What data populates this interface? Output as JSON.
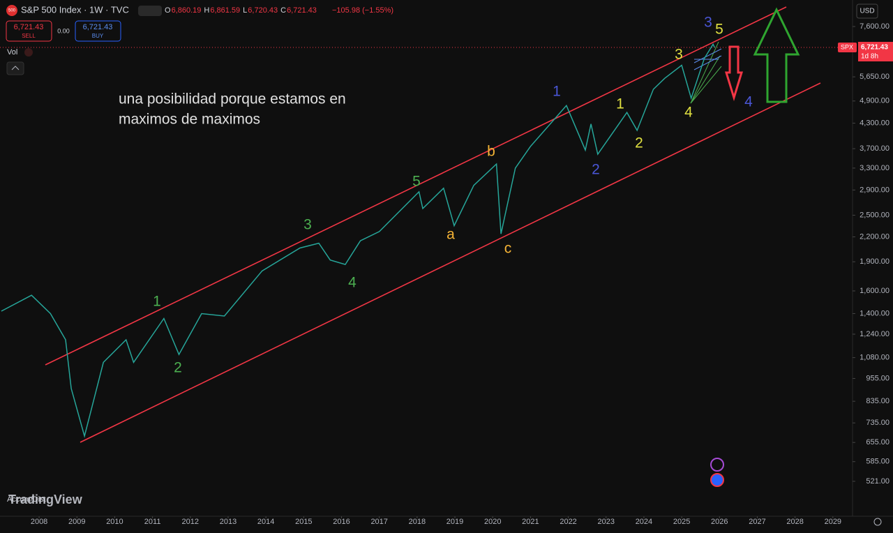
{
  "header": {
    "logo": "500",
    "symbol": "S&P 500 Index · 1W · TVC",
    "ohlc": [
      {
        "key": "O",
        "value": "6,860.19"
      },
      {
        "key": "H",
        "value": "6,861.59"
      },
      {
        "key": "L",
        "value": "6,720.43"
      },
      {
        "key": "C",
        "value": "6,721.43"
      }
    ],
    "change": "−105.98 (−1.55%)"
  },
  "trade": {
    "sell_price": "6,721.43",
    "sell": "SELL",
    "spread": "0.00",
    "buy_price": "6,721.43",
    "buy": "BUY"
  },
  "indicators": [
    "Vol",
    "Accum/Dist"
  ],
  "watermark": "TradingView",
  "currency": "USD",
  "price_tag": {
    "symbol": "SPX",
    "price": "6,721.43",
    "countdown": "1d 8h"
  },
  "annotation": [
    "una posibilidad porque estamos en",
    "maximos de maximos"
  ],
  "wave_labels": [
    {
      "text": "1",
      "color": "#4caf50"
    },
    {
      "text": "2",
      "color": "#4caf50"
    },
    {
      "text": "3",
      "color": "#4caf50"
    },
    {
      "text": "4",
      "color": "#4caf50"
    },
    {
      "text": "5",
      "color": "#4caf50"
    },
    {
      "text": "a",
      "color": "#f5b335"
    },
    {
      "text": "b",
      "color": "#f5b335"
    },
    {
      "text": "c",
      "color": "#f5b335"
    },
    {
      "text": "1",
      "color": "#4a56d6"
    },
    {
      "text": "2",
      "color": "#4a56d6"
    },
    {
      "text": "3",
      "color": "#4a56d6"
    },
    {
      "text": "4",
      "color": "#4a56d6"
    },
    {
      "text": "1",
      "color": "#e0e040"
    },
    {
      "text": "2",
      "color": "#e0e040"
    },
    {
      "text": "3",
      "color": "#e0e040"
    },
    {
      "text": "4",
      "color": "#e0e040"
    },
    {
      "text": "5",
      "color": "#e0e040"
    }
  ],
  "chart_data": {
    "type": "line",
    "log_scale": true,
    "color": "#26a69a",
    "x": [
      2007.0,
      2007.8,
      2008.3,
      2008.7,
      2008.85,
      2009.2,
      2009.7,
      2010.3,
      2010.5,
      2011.3,
      2011.7,
      2012.3,
      2012.9,
      2013.9,
      2014.9,
      2015.4,
      2015.7,
      2016.1,
      2016.5,
      2017.0,
      2018.05,
      2018.15,
      2018.7,
      2018.98,
      2019.5,
      2020.1,
      2020.22,
      2020.6,
      2021.0,
      2021.95,
      2022.45,
      2022.6,
      2022.78,
      2023.55,
      2023.82,
      2024.25,
      2024.55,
      2025.0,
      2025.25,
      2025.6,
      2025.83,
      2025.87
    ],
    "values": [
      1420,
      1560,
      1400,
      1200,
      900,
      680,
      1050,
      1200,
      1050,
      1360,
      1100,
      1400,
      1380,
      1800,
      2060,
      2120,
      1920,
      1870,
      2150,
      2270,
      2870,
      2600,
      2930,
      2350,
      2980,
      3380,
      2240,
      3300,
      3750,
      4770,
      3670,
      4280,
      3580,
      4580,
      4120,
      5250,
      5600,
      6050,
      4980,
      6300,
      6850,
      6721.43
    ],
    "xlim": [
      2006.965,
      2029.52
    ],
    "ylim": [
      424,
      8886
    ],
    "xticks": [
      2008,
      2009,
      2010,
      2011,
      2012,
      2013,
      2014,
      2015,
      2016,
      2017,
      2018,
      2019,
      2020,
      2021,
      2022,
      2023,
      2024,
      2025,
      2026,
      2027,
      2028,
      2029
    ],
    "yticks": [
      {
        "value": 7600,
        "label": "7,600.00"
      },
      {
        "value": 5650,
        "label": "5,650.00"
      },
      {
        "value": 4900,
        "label": "4,900.00"
      },
      {
        "value": 4300,
        "label": "4,300.00"
      },
      {
        "value": 3700,
        "label": "3,700.00"
      },
      {
        "value": 3300,
        "label": "3,300.00"
      },
      {
        "value": 2900,
        "label": "2,900.00"
      },
      {
        "value": 2500,
        "label": "2,500.00"
      },
      {
        "value": 2200,
        "label": "2,200.00"
      },
      {
        "value": 1900,
        "label": "1,900.00"
      },
      {
        "value": 1600,
        "label": "1,600.00"
      },
      {
        "value": 1400,
        "label": "1,400.00"
      },
      {
        "value": 1240,
        "label": "1,240.00"
      },
      {
        "value": 1080,
        "label": "1,080.00"
      },
      {
        "value": 955,
        "label": "955.00"
      },
      {
        "value": 835,
        "label": "835.00"
      },
      {
        "value": 735,
        "label": "735.00"
      },
      {
        "value": 655,
        "label": "655.00"
      },
      {
        "value": 585,
        "label": "585.00"
      },
      {
        "value": 521,
        "label": "521.00"
      }
    ]
  }
}
